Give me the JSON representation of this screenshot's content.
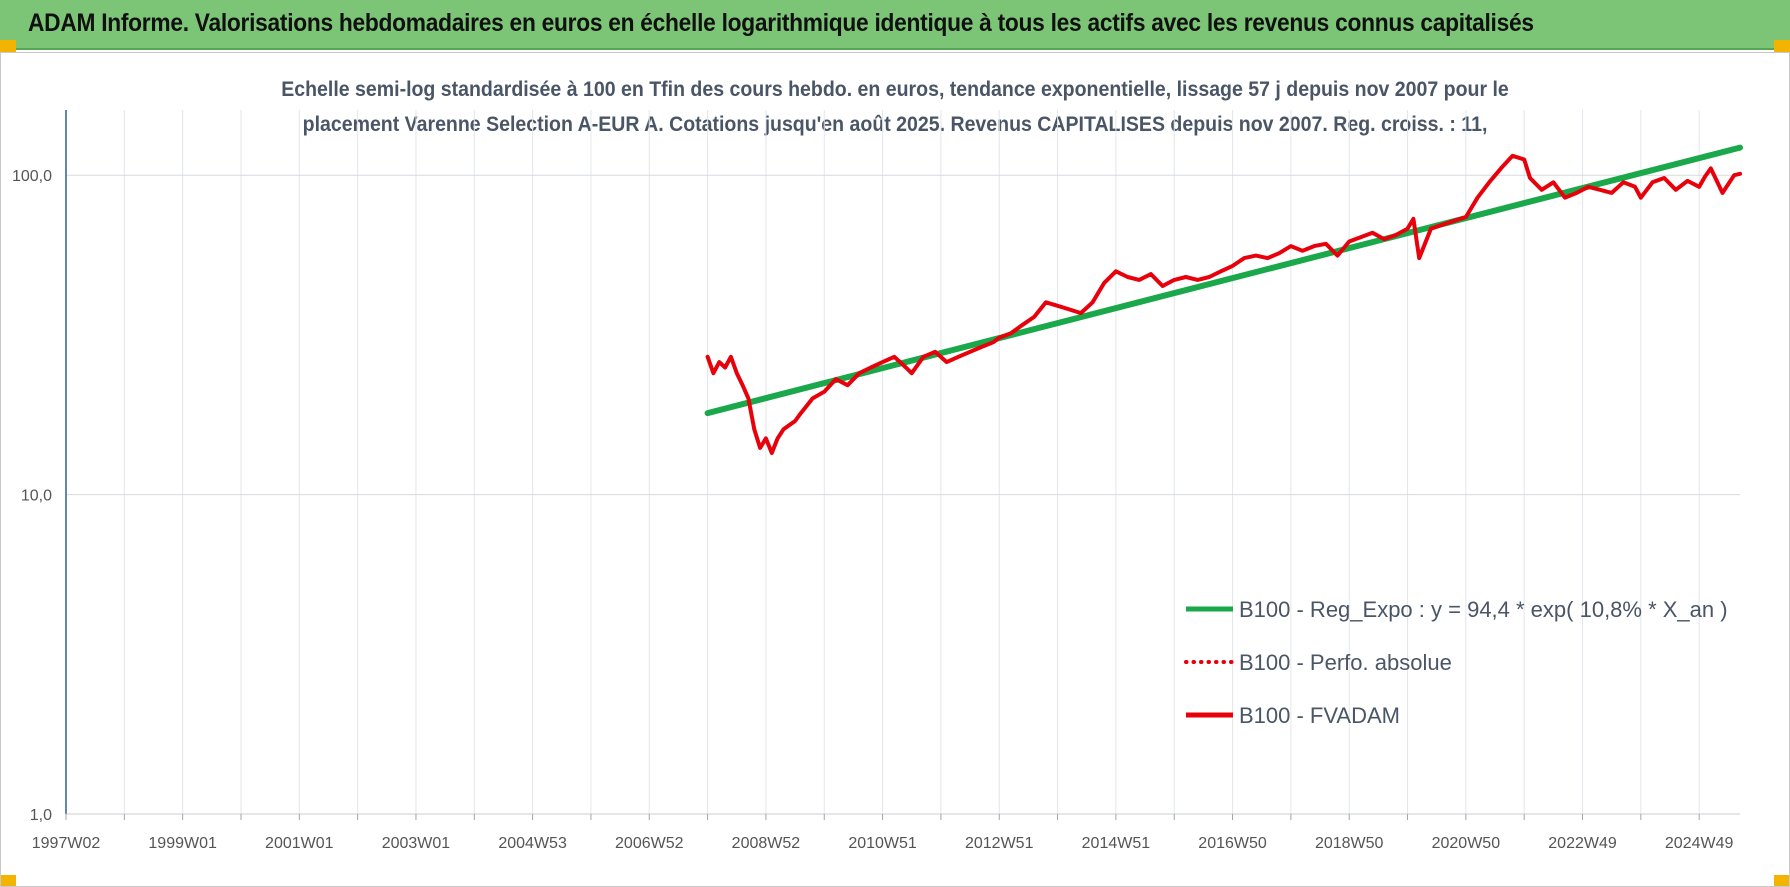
{
  "header": {
    "title": "ADAM Informe. Valorisations hebdomadaires en euros en échelle logarithmique identique à tous les actifs avec les revenus connus capitalisés"
  },
  "chart_data": {
    "type": "line",
    "subtitle_line1": "Echelle semi-log standardisée à 100 en Tfin des cours hebdo. en euros, tendance exponentielle, lissage 57 j depuis nov 2007 pour le",
    "subtitle_line2": "placement Varenne Selection A-EUR A.  Cotations jusqu'en août 2025.  Revenus CAPITALISES depuis nov 2007. Reg. croiss. : 11,",
    "y_scale": "log",
    "ylim": [
      1,
      160
    ],
    "y_ticks": [
      1,
      10,
      100
    ],
    "y_tick_labels": [
      "1,0",
      "10,0",
      "100,0"
    ],
    "xlim": [
      1997.0,
      2025.7
    ],
    "x_ticks": [
      {
        "x": 1997.0,
        "label": "1997W02"
      },
      {
        "x": 1999.0,
        "label": "1999W01"
      },
      {
        "x": 2001.0,
        "label": "2001W01"
      },
      {
        "x": 2003.0,
        "label": "2003W01"
      },
      {
        "x": 2005.0,
        "label": "2004W53"
      },
      {
        "x": 2007.0,
        "label": "2006W52"
      },
      {
        "x": 2009.0,
        "label": "2008W52"
      },
      {
        "x": 2011.0,
        "label": "2010W51"
      },
      {
        "x": 2013.0,
        "label": "2012W51"
      },
      {
        "x": 2015.0,
        "label": "2014W51"
      },
      {
        "x": 2017.0,
        "label": "2016W50"
      },
      {
        "x": 2019.0,
        "label": "2018W50"
      },
      {
        "x": 2021.0,
        "label": "2020W50"
      },
      {
        "x": 2023.0,
        "label": "2022W49"
      },
      {
        "x": 2025.0,
        "label": "2024W49"
      }
    ],
    "x_minor_ticks": [
      1998,
      2000,
      2002,
      2004,
      2006,
      2008,
      2010,
      2012,
      2014,
      2016,
      2018,
      2020,
      2022,
      2024
    ],
    "grid": true,
    "legend_position": "bottom-right",
    "series": [
      {
        "name": "B100 - Reg_Expo : y = 94,4 * exp( 10,8% *  X_an )",
        "color": "#1aa84a",
        "style": "solid",
        "x": [
          2008.0,
          2025.7
        ],
        "y": [
          18,
          122
        ]
      },
      {
        "name": "B100 - Perfo. absolue",
        "color": "#e8000b",
        "style": "dotted",
        "x": [],
        "y": []
      },
      {
        "name": "B100 - FVADAM",
        "color": "#e8000b",
        "style": "solid",
        "x": [
          2008.0,
          2008.1,
          2008.2,
          2008.3,
          2008.4,
          2008.5,
          2008.6,
          2008.7,
          2008.8,
          2008.9,
          2009.0,
          2009.1,
          2009.2,
          2009.3,
          2009.4,
          2009.5,
          2009.6,
          2009.8,
          2010.0,
          2010.2,
          2010.4,
          2010.6,
          2010.8,
          2011.0,
          2011.2,
          2011.4,
          2011.5,
          2011.7,
          2011.9,
          2012.1,
          2012.3,
          2012.5,
          2012.7,
          2012.9,
          2013.0,
          2013.2,
          2013.4,
          2013.6,
          2013.8,
          2014.0,
          2014.2,
          2014.4,
          2014.6,
          2014.8,
          2015.0,
          2015.2,
          2015.4,
          2015.6,
          2015.8,
          2016.0,
          2016.2,
          2016.4,
          2016.6,
          2016.8,
          2017.0,
          2017.2,
          2017.4,
          2017.6,
          2017.8,
          2018.0,
          2018.2,
          2018.4,
          2018.6,
          2018.8,
          2019.0,
          2019.2,
          2019.4,
          2019.6,
          2019.8,
          2020.0,
          2020.1,
          2020.2,
          2020.4,
          2020.6,
          2020.8,
          2021.0,
          2021.2,
          2021.4,
          2021.6,
          2021.8,
          2022.0,
          2022.1,
          2022.3,
          2022.5,
          2022.7,
          2022.9,
          2023.1,
          2023.3,
          2023.5,
          2023.7,
          2023.9,
          2024.0,
          2024.2,
          2024.4,
          2024.6,
          2024.8,
          2025.0,
          2025.1,
          2025.2,
          2025.4,
          2025.6,
          2025.7
        ],
        "y": [
          27,
          24,
          26,
          25,
          27,
          24,
          22,
          20,
          16,
          14,
          15,
          13.5,
          15,
          16,
          16.5,
          17,
          18,
          20,
          21,
          23,
          22,
          24,
          25,
          26,
          27,
          25,
          24,
          27,
          28,
          26,
          27,
          28,
          29,
          30,
          31,
          32,
          34,
          36,
          40,
          39,
          38,
          37,
          40,
          46,
          50,
          48,
          47,
          49,
          45,
          47,
          48,
          47,
          48,
          50,
          52,
          55,
          56,
          55,
          57,
          60,
          58,
          60,
          61,
          56,
          62,
          64,
          66,
          63,
          65,
          68,
          73,
          55,
          68,
          70,
          72,
          74,
          85,
          95,
          105,
          115,
          112,
          98,
          90,
          95,
          85,
          88,
          92,
          90,
          88,
          95,
          92,
          85,
          95,
          98,
          90,
          96,
          92,
          99,
          105,
          88,
          100,
          101
        ]
      }
    ]
  }
}
